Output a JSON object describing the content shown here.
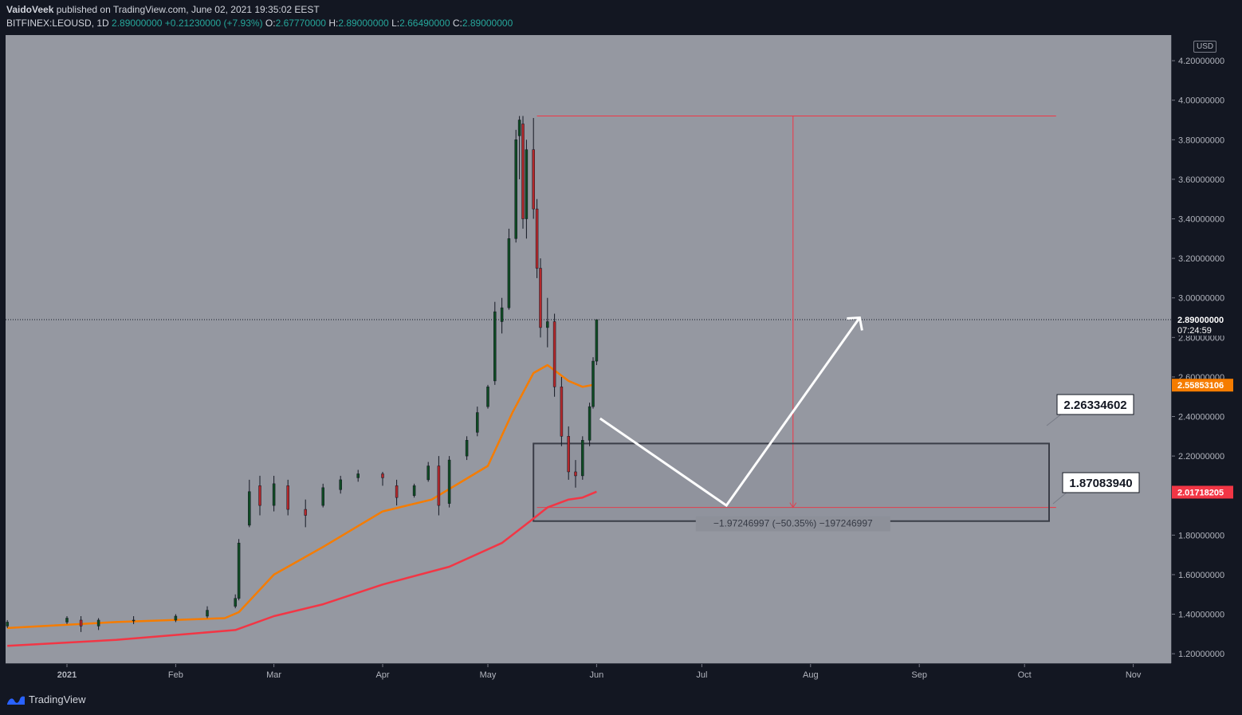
{
  "header": {
    "author": "VaidoVeek",
    "published_text": "published on TradingView.com, June 02, 2021 19:35:02 EEST",
    "symbol": "BITFINEX:LEOUSD, 1D",
    "last": "2.89000000",
    "change": "+0.21230000 (+7.93%)",
    "o_label": "O:",
    "o_val": "2.67770000",
    "h_label": "H:",
    "h_val": "2.89000000",
    "l_label": "L:",
    "l_val": "2.66490000",
    "c_label": "C:",
    "c_val": "2.89000000"
  },
  "axis": {
    "currency": "USD",
    "price_ticks": [
      "1.20000000",
      "1.40000000",
      "1.60000000",
      "1.80000000",
      "2.00000000",
      "2.20000000",
      "2.40000000",
      "2.60000000",
      "2.80000000",
      "3.00000000",
      "3.20000000",
      "3.40000000",
      "3.60000000",
      "3.80000000",
      "4.00000000",
      "4.20000000"
    ],
    "price_tick_values": [
      1.2,
      1.4,
      1.6,
      1.8,
      2.0,
      2.2,
      2.4,
      2.6,
      2.8,
      3.0,
      3.2,
      3.4,
      3.6,
      3.8,
      4.0,
      4.2
    ],
    "time_ticks": [
      "2021",
      "Feb",
      "Mar",
      "Apr",
      "May",
      "Jun",
      "Jul",
      "Aug",
      "Sep",
      "Oct",
      "Nov"
    ],
    "time_tick_dates": [
      "2021-01-01",
      "2021-02-01",
      "2021-03-01",
      "2021-04-01",
      "2021-05-01",
      "2021-06-01",
      "2021-07-01",
      "2021-08-01",
      "2021-09-01",
      "2021-10-01",
      "2021-11-01"
    ]
  },
  "labels": {
    "last_price": "2.89000000",
    "countdown": "07:24:59",
    "ema_orange": "2.55853106",
    "ema_red": "2.01718205",
    "box_top_callout": "2.26334602",
    "box_bottom_callout": "1.87083940",
    "measure_text": "−1.97246997 (−50.35%) −197246997"
  },
  "footer": {
    "brand": "TradingView"
  },
  "colors": {
    "background": "#131722",
    "plot_bg": "#9598a1",
    "candle_up": "#0f4a23",
    "candle_down": "#b2282b",
    "ema_orange": "#f57c00",
    "ema_red": "#f23645",
    "text": "#d1d4dc"
  },
  "chart_data": {
    "type": "candlestick",
    "title": "BITFINEX:LEOUSD, 1D",
    "y_scale": "linear",
    "ylim": [
      1.1,
      4.3
    ],
    "candles": [
      {
        "date": "2020-12-15",
        "open": 1.34,
        "high": 1.37,
        "low": 1.33,
        "close": 1.36
      },
      {
        "date": "2021-01-01",
        "open": 1.36,
        "high": 1.39,
        "low": 1.35,
        "close": 1.38
      },
      {
        "date": "2021-01-05",
        "open": 1.37,
        "high": 1.39,
        "low": 1.31,
        "close": 1.34
      },
      {
        "date": "2021-01-10",
        "open": 1.34,
        "high": 1.38,
        "low": 1.32,
        "close": 1.37
      },
      {
        "date": "2021-01-20",
        "open": 1.37,
        "high": 1.39,
        "low": 1.35,
        "close": 1.37
      },
      {
        "date": "2021-02-01",
        "open": 1.37,
        "high": 1.4,
        "low": 1.36,
        "close": 1.39
      },
      {
        "date": "2021-02-10",
        "open": 1.39,
        "high": 1.44,
        "low": 1.38,
        "close": 1.42
      },
      {
        "date": "2021-02-18",
        "open": 1.44,
        "high": 1.5,
        "low": 1.43,
        "close": 1.48
      },
      {
        "date": "2021-02-19",
        "open": 1.48,
        "high": 1.78,
        "low": 1.47,
        "close": 1.76
      },
      {
        "date": "2021-02-22",
        "open": 1.85,
        "high": 2.08,
        "low": 1.84,
        "close": 2.02
      },
      {
        "date": "2021-02-25",
        "open": 2.05,
        "high": 2.1,
        "low": 1.9,
        "close": 1.95
      },
      {
        "date": "2021-03-01",
        "open": 1.95,
        "high": 2.1,
        "low": 1.92,
        "close": 2.06
      },
      {
        "date": "2021-03-05",
        "open": 2.05,
        "high": 2.08,
        "low": 1.9,
        "close": 1.93
      },
      {
        "date": "2021-03-10",
        "open": 1.93,
        "high": 1.98,
        "low": 1.84,
        "close": 1.9
      },
      {
        "date": "2021-03-15",
        "open": 1.95,
        "high": 2.06,
        "low": 1.94,
        "close": 2.04
      },
      {
        "date": "2021-03-20",
        "open": 2.03,
        "high": 2.1,
        "low": 2.01,
        "close": 2.08
      },
      {
        "date": "2021-03-25",
        "open": 2.09,
        "high": 2.13,
        "low": 2.07,
        "close": 2.11
      },
      {
        "date": "2021-04-01",
        "open": 2.11,
        "high": 2.12,
        "low": 2.05,
        "close": 2.09
      },
      {
        "date": "2021-04-05",
        "open": 2.05,
        "high": 2.08,
        "low": 1.95,
        "close": 1.99
      },
      {
        "date": "2021-04-10",
        "open": 2.0,
        "high": 2.06,
        "low": 1.99,
        "close": 2.05
      },
      {
        "date": "2021-04-14",
        "open": 2.08,
        "high": 2.17,
        "low": 2.07,
        "close": 2.15
      },
      {
        "date": "2021-04-17",
        "open": 2.15,
        "high": 2.2,
        "low": 1.9,
        "close": 1.95
      },
      {
        "date": "2021-04-20",
        "open": 1.96,
        "high": 2.2,
        "low": 1.94,
        "close": 2.18
      },
      {
        "date": "2021-04-25",
        "open": 2.2,
        "high": 2.3,
        "low": 2.18,
        "close": 2.28
      },
      {
        "date": "2021-04-28",
        "open": 2.32,
        "high": 2.45,
        "low": 2.3,
        "close": 2.42
      },
      {
        "date": "2021-05-01",
        "open": 2.45,
        "high": 2.56,
        "low": 2.44,
        "close": 2.55
      },
      {
        "date": "2021-05-03",
        "open": 2.58,
        "high": 2.98,
        "low": 2.56,
        "close": 2.93
      },
      {
        "date": "2021-05-05",
        "open": 2.88,
        "high": 3.0,
        "low": 2.82,
        "close": 2.95
      },
      {
        "date": "2021-05-07",
        "open": 2.95,
        "high": 3.35,
        "low": 2.94,
        "close": 3.3
      },
      {
        "date": "2021-05-09",
        "open": 3.3,
        "high": 3.85,
        "low": 3.28,
        "close": 3.8
      },
      {
        "date": "2021-05-10",
        "open": 3.82,
        "high": 3.92,
        "low": 3.6,
        "close": 3.9
      },
      {
        "date": "2021-05-11",
        "open": 3.88,
        "high": 3.92,
        "low": 3.35,
        "close": 3.4
      },
      {
        "date": "2021-05-12",
        "open": 3.4,
        "high": 3.8,
        "low": 3.3,
        "close": 3.75
      },
      {
        "date": "2021-05-14",
        "open": 3.75,
        "high": 3.91,
        "low": 3.4,
        "close": 3.45
      },
      {
        "date": "2021-05-15",
        "open": 3.45,
        "high": 3.5,
        "low": 3.1,
        "close": 3.15
      },
      {
        "date": "2021-05-16",
        "open": 3.15,
        "high": 3.2,
        "low": 2.8,
        "close": 2.85
      },
      {
        "date": "2021-05-18",
        "open": 2.85,
        "high": 3.0,
        "low": 2.75,
        "close": 2.88
      },
      {
        "date": "2021-05-20",
        "open": 2.88,
        "high": 2.92,
        "low": 2.5,
        "close": 2.55
      },
      {
        "date": "2021-05-22",
        "open": 2.55,
        "high": 2.6,
        "low": 2.25,
        "close": 2.3
      },
      {
        "date": "2021-05-24",
        "open": 2.3,
        "high": 2.35,
        "low": 2.08,
        "close": 2.12
      },
      {
        "date": "2021-05-26",
        "open": 2.12,
        "high": 2.18,
        "low": 2.04,
        "close": 2.1
      },
      {
        "date": "2021-05-28",
        "open": 2.1,
        "high": 2.3,
        "low": 2.08,
        "close": 2.28
      },
      {
        "date": "2021-05-30",
        "open": 2.28,
        "high": 2.47,
        "low": 2.25,
        "close": 2.45
      },
      {
        "date": "2021-05-31",
        "open": 2.45,
        "high": 2.7,
        "low": 2.44,
        "close": 2.68
      },
      {
        "date": "2021-06-01",
        "open": 2.68,
        "high": 2.89,
        "low": 2.66,
        "close": 2.89
      }
    ],
    "ema_orange": {
      "value": 2.55853106,
      "points": [
        [
          "2020-12-15",
          1.33
        ],
        [
          "2021-01-15",
          1.36
        ],
        [
          "2021-02-15",
          1.38
        ],
        [
          "2021-02-19",
          1.41
        ],
        [
          "2021-03-01",
          1.6
        ],
        [
          "2021-03-15",
          1.74
        ],
        [
          "2021-04-01",
          1.92
        ],
        [
          "2021-04-15",
          1.98
        ],
        [
          "2021-05-01",
          2.15
        ],
        [
          "2021-05-08",
          2.42
        ],
        [
          "2021-05-14",
          2.62
        ],
        [
          "2021-05-18",
          2.66
        ],
        [
          "2021-05-24",
          2.58
        ],
        [
          "2021-05-28",
          2.55
        ],
        [
          "2021-05-31",
          2.56
        ]
      ]
    },
    "ema_red": {
      "value": 2.01718205,
      "points": [
        [
          "2020-12-15",
          1.24
        ],
        [
          "2021-01-15",
          1.27
        ],
        [
          "2021-02-18",
          1.32
        ],
        [
          "2021-03-01",
          1.39
        ],
        [
          "2021-03-15",
          1.45
        ],
        [
          "2021-04-01",
          1.55
        ],
        [
          "2021-04-20",
          1.64
        ],
        [
          "2021-05-05",
          1.76
        ],
        [
          "2021-05-13",
          1.87
        ],
        [
          "2021-05-18",
          1.94
        ],
        [
          "2021-05-24",
          1.98
        ],
        [
          "2021-05-28",
          1.99
        ],
        [
          "2021-06-01",
          2.02
        ]
      ]
    },
    "last_price": 2.89,
    "box": {
      "x_start": "2021-05-14",
      "x_end": "2021-10-08",
      "y_top": 2.26334602,
      "y_bottom": 1.8708394
    },
    "measure": {
      "x": "2021-07-27",
      "x_start": "2021-05-15",
      "x_end": "2021-10-10",
      "y_from": 3.92,
      "y_to": 1.94
    },
    "projection": [
      [
        "2021-06-02",
        2.39
      ],
      [
        "2021-07-08",
        1.95
      ],
      [
        "2021-08-15",
        2.9
      ]
    ]
  }
}
